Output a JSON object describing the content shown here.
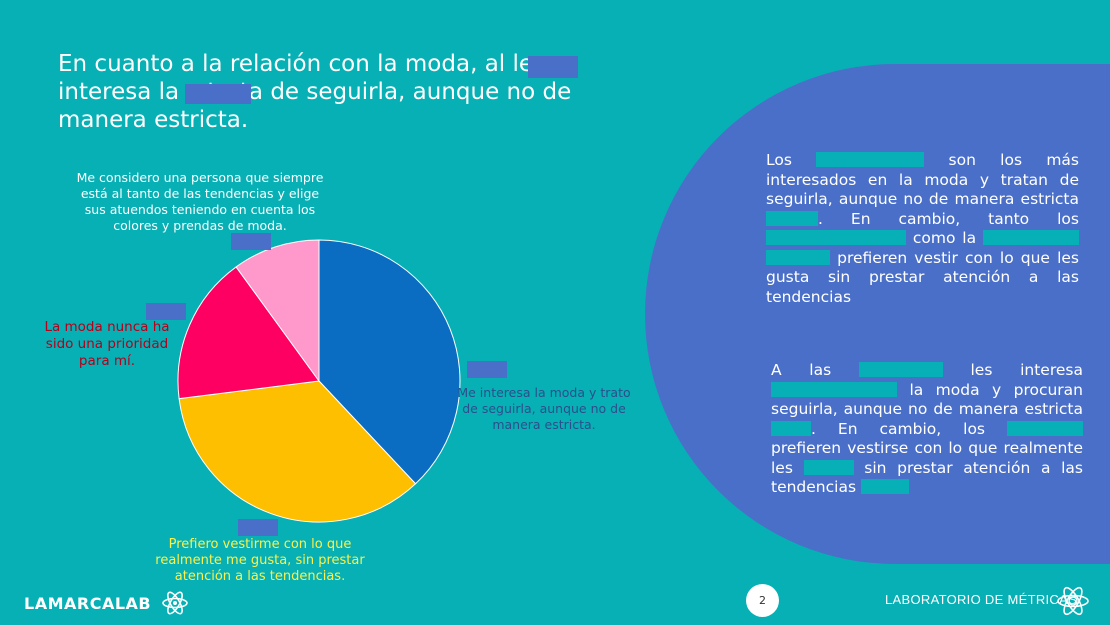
{
  "slide": {
    "title": "En cuanto a la relación con la moda, al        le interesa la           y trata de seguirla, aunque no de manera estricta.",
    "page_number": "2",
    "footer_logo": "LAMARCALAB",
    "footer_lab": "LABORATORIO DE MÉTRICAS"
  },
  "colors": {
    "background": "#06b0b5",
    "panel": "#4a6fc8",
    "redaction": "#4a6fc8"
  },
  "chart_data": {
    "type": "pie",
    "title": "",
    "slices": [
      {
        "label": "Me interesa la moda y trato de seguirla, aunque no de manera estricta.",
        "value": 38,
        "color": "#0a6dc2"
      },
      {
        "label": "Prefiero vestirme con lo que realmente me gusta, sin prestar atención a las tendencias.",
        "value": 35,
        "color": "#fdbf00"
      },
      {
        "label": "La moda nunca ha sido una prioridad para mí.",
        "value": 17,
        "color": "#fe0062"
      },
      {
        "label": "Me considero una persona que siempre está al tanto de las tendencias y elige sus atuendos teniendo en cuenta los colores y prendas de moda.",
        "value": 10,
        "color": "#ff99cb"
      }
    ]
  },
  "labels": {
    "top": "Me considero una persona que siempre está al tanto de las tendencias y elige sus atuendos teniendo en cuenta los colores y prendas de moda.",
    "left": "La moda nunca ha sido una prioridad para mí.",
    "right": "Me interesa la moda y trato de seguirla, aunque no de manera estricta.",
    "bottom": "Prefiero vestirme con lo que realmente me gusta, sin prestar atención a las tendencias."
  },
  "panel": {
    "p1": [
      "Los",
      "son los más interesados en la moda y tratan de seguirla, aunque no de manera estricta",
      ". En cambio, tanto los",
      "como la",
      "prefieren vestir con lo que les gusta sin prestar atención a las tendencias"
    ],
    "p2": [
      "A las",
      "les interesa",
      "la moda y procuran seguirla, aunque no de manera estricta",
      ". En cambio, los",
      "prefieren vestirse con lo que realmente les",
      "sin prestar atención a las tendencias"
    ]
  }
}
